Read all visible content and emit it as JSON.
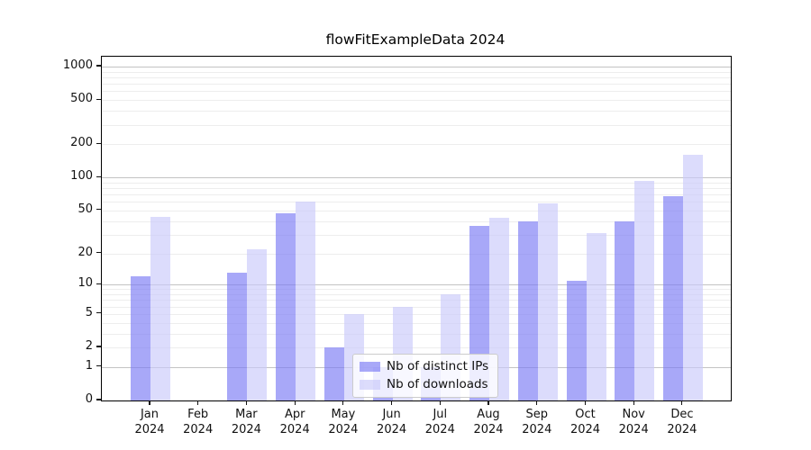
{
  "title": "flowFitExampleData 2024",
  "chart_data": {
    "type": "bar",
    "title": "flowFitExampleData 2024",
    "categories": [
      "Jan 2024",
      "Feb 2024",
      "Mar 2024",
      "Apr 2024",
      "May 2024",
      "Jun 2024",
      "Jul 2024",
      "Aug 2024",
      "Sep 2024",
      "Oct 2024",
      "Nov 2024",
      "Dec 2024"
    ],
    "series": [
      {
        "name": "Nb of distinct IPs",
        "color": "rgba(121,121,244,0.65)",
        "values": [
          12,
          0,
          13,
          47,
          2,
          1,
          1,
          36,
          40,
          11,
          40,
          68
        ]
      },
      {
        "name": "Nb of downloads",
        "color": "rgba(201,201,250,0.65)",
        "values": [
          44,
          0,
          22,
          60,
          5,
          6,
          8,
          43,
          58,
          31,
          94,
          160
        ]
      }
    ],
    "xlabel": "",
    "ylabel": "",
    "yscale": "log10(1+x)",
    "yticks": [
      0,
      1,
      2,
      5,
      10,
      20,
      50,
      100,
      200,
      500,
      1000
    ],
    "minor_gridlines": [
      2,
      3,
      4,
      5,
      6,
      7,
      8,
      9,
      20,
      30,
      40,
      50,
      60,
      70,
      80,
      90,
      200,
      300,
      400,
      500,
      600,
      700,
      800,
      900
    ],
    "major_gridlines": [
      1,
      10,
      100,
      1000
    ],
    "ylim": [
      0,
      1200
    ],
    "grid": true,
    "legend_position": "lower center"
  },
  "legend": {
    "items": [
      {
        "label": "Nb of distinct IPs",
        "color": "rgba(121,121,244,0.65)"
      },
      {
        "label": "Nb of downloads",
        "color": "rgba(201,201,250,0.65)"
      }
    ]
  },
  "colors": {
    "bar_dark_on_white": "#a8a8f8",
    "bar_light_on_white": "#dcdcfa",
    "major_grid": "#c3c3c3",
    "minor_grid": "#ededed",
    "spine": "#000000",
    "background": "#ffffff"
  }
}
